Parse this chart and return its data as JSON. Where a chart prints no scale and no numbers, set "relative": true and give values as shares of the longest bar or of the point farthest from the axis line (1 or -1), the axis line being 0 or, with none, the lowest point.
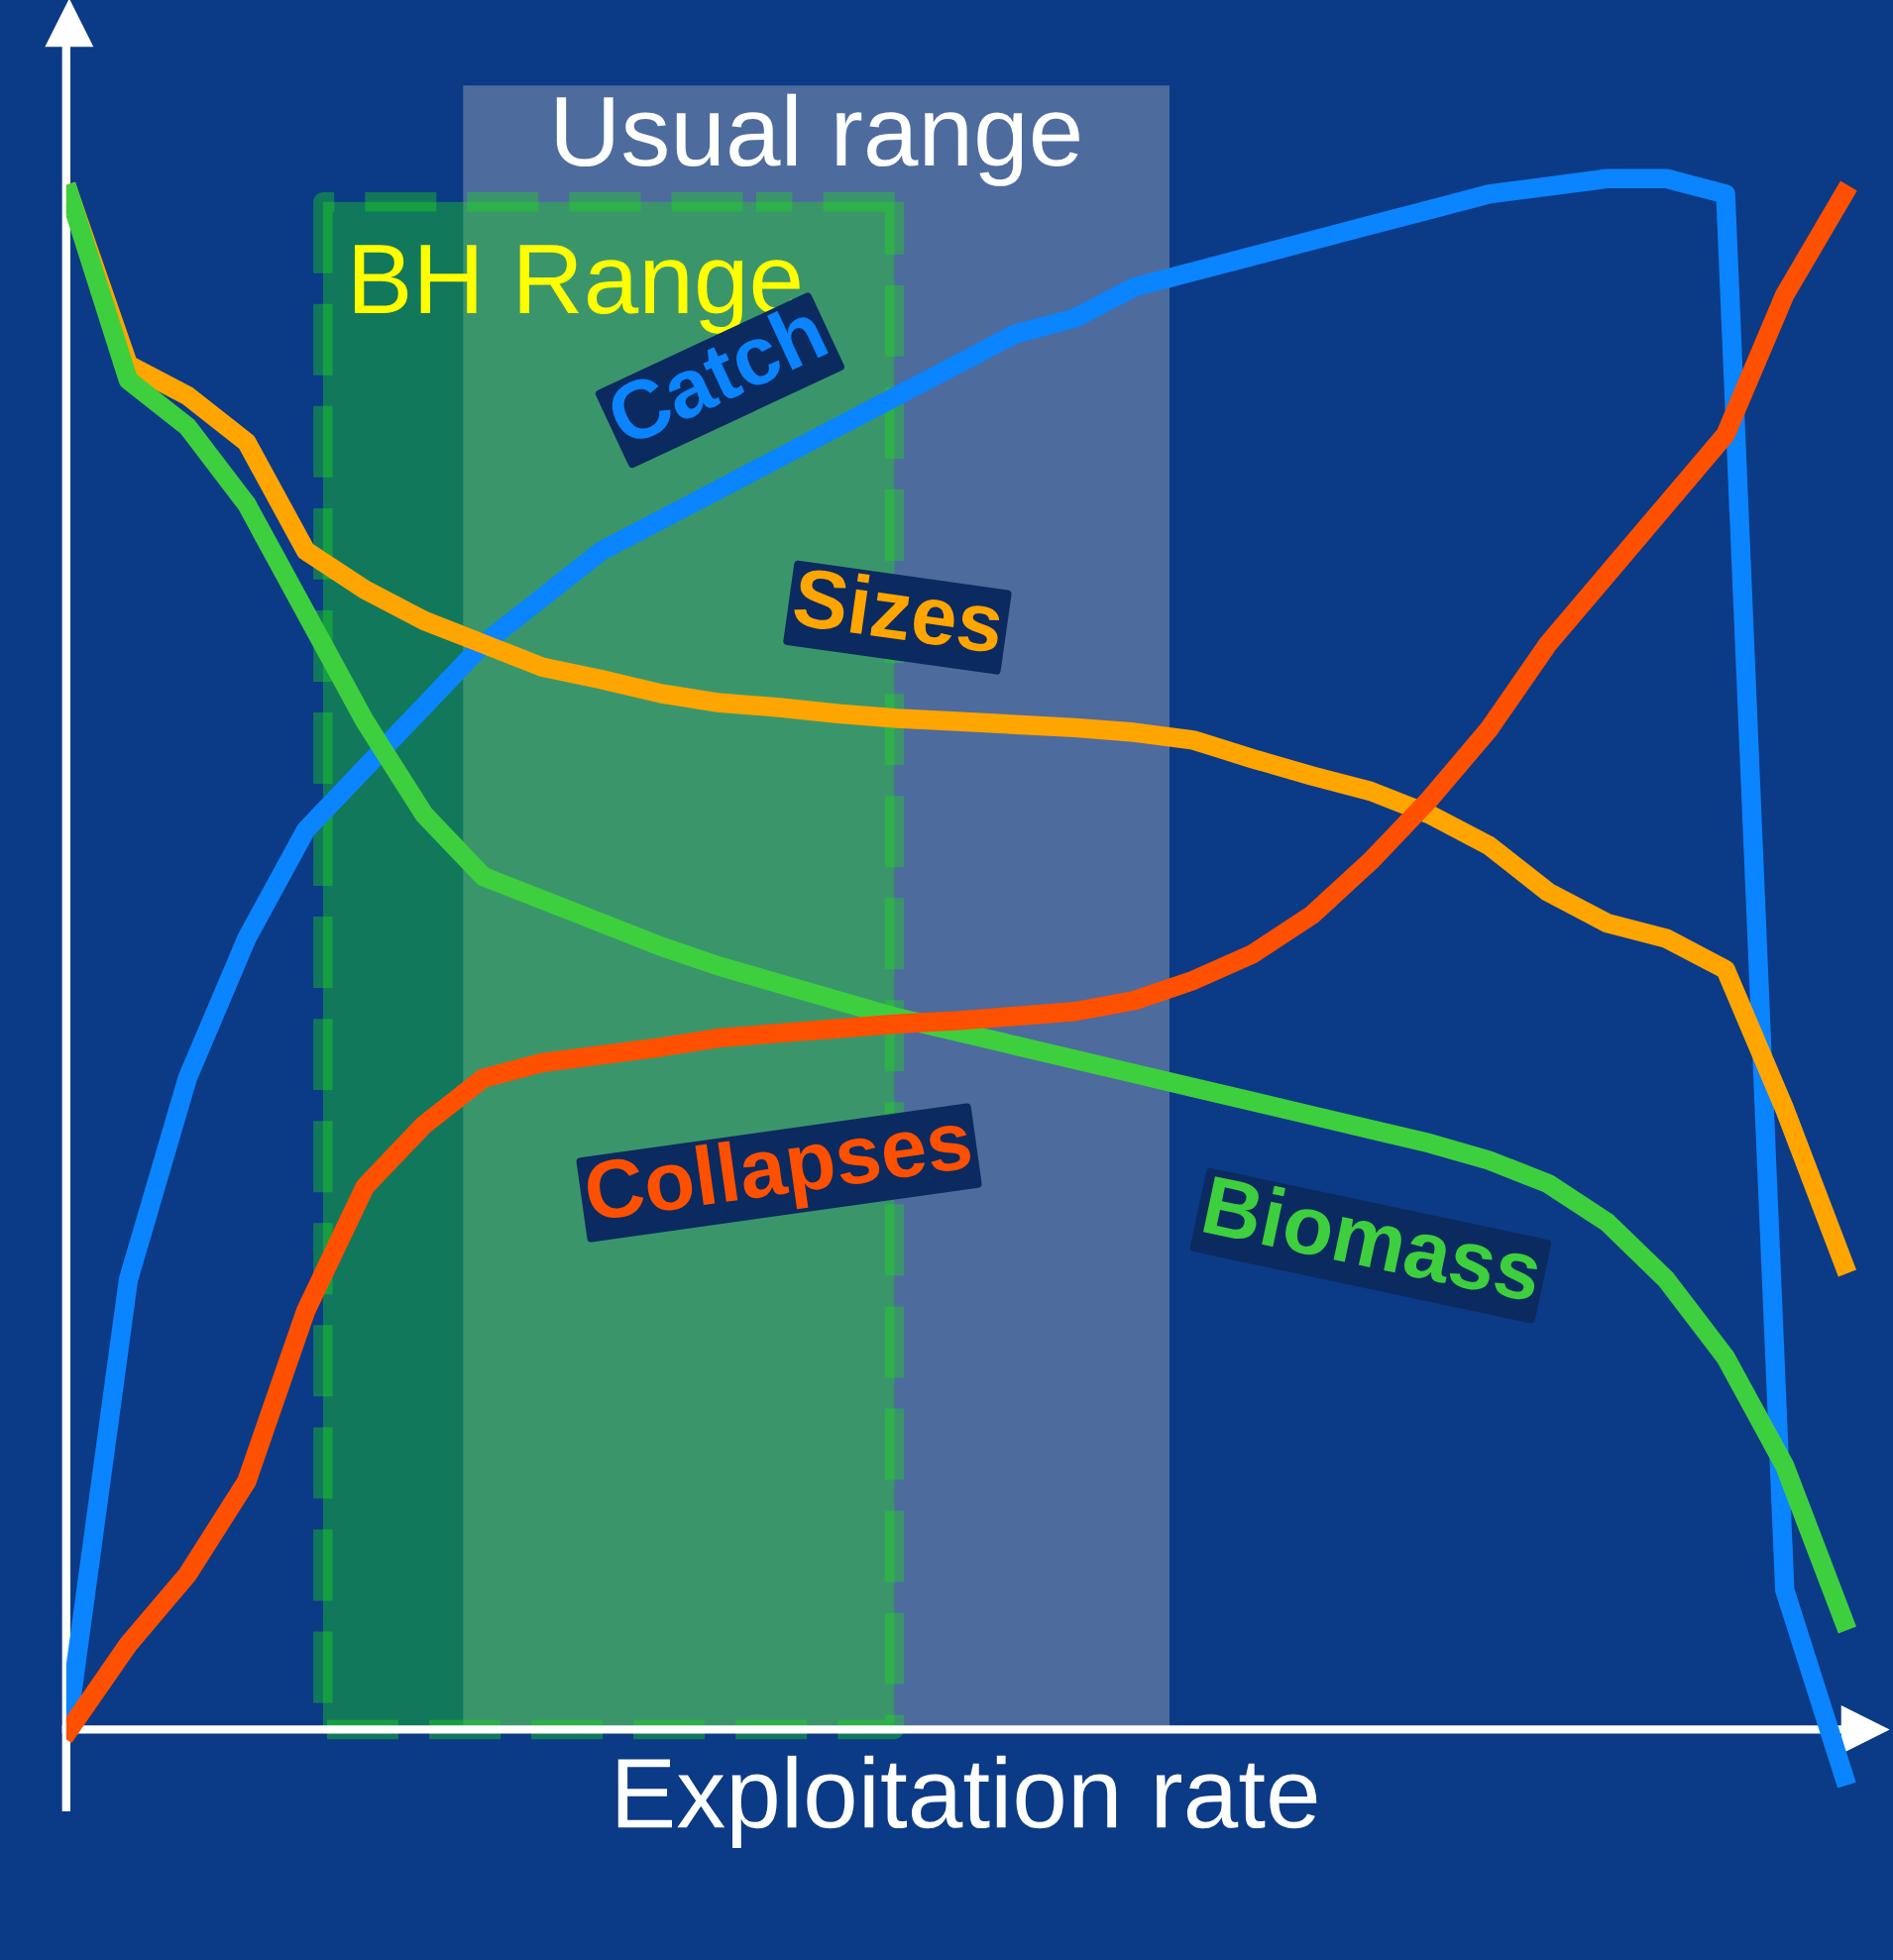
{
  "chart_data": {
    "type": "line",
    "relative": true,
    "xlabel": "Exploitation rate",
    "legend": false,
    "marker": "none",
    "line_style": "solid",
    "categories": [
      null,
      null,
      null,
      null,
      null,
      null,
      null,
      null,
      null,
      null,
      null,
      null,
      null,
      null,
      null,
      null,
      null,
      null,
      null,
      null,
      null,
      null,
      null,
      null,
      null,
      null,
      null,
      null,
      null,
      null,
      null
    ],
    "series": [
      {
        "name": "Catch",
        "color": "#0a84ff",
        "values": [
          0.01,
          0.29,
          0.42,
          0.51,
          0.58,
          0.62,
          0.66,
          0.7,
          0.73,
          0.76,
          0.78,
          0.8,
          0.82,
          0.84,
          0.86,
          0.88,
          0.9,
          0.91,
          0.93,
          0.94,
          0.95,
          0.96,
          0.97,
          0.98,
          0.99,
          0.995,
          1.0,
          1.0,
          0.99,
          0.09,
          -0.03
        ]
      },
      {
        "name": "Sizes",
        "color": "#ffa500",
        "values": [
          0.99,
          0.88,
          0.86,
          0.83,
          0.76,
          0.735,
          0.715,
          0.7,
          0.685,
          0.677,
          0.668,
          0.662,
          0.659,
          0.655,
          0.652,
          0.65,
          0.648,
          0.646,
          0.643,
          0.638,
          0.626,
          0.615,
          0.605,
          0.59,
          0.57,
          0.54,
          0.52,
          0.51,
          0.49,
          0.4,
          0.3
        ]
      },
      {
        "name": "Biomass",
        "color": "#3ecf3e",
        "values": [
          0.99,
          0.87,
          0.84,
          0.79,
          0.72,
          0.65,
          0.59,
          0.55,
          0.535,
          0.52,
          0.505,
          0.492,
          0.481,
          0.47,
          0.459,
          0.45,
          0.441,
          0.432,
          0.423,
          0.414,
          0.405,
          0.396,
          0.387,
          0.378,
          0.367,
          0.352,
          0.327,
          0.29,
          0.24,
          0.17,
          0.07
        ]
      },
      {
        "name": "Collapses",
        "color": "#ff5000",
        "values": [
          0.0,
          0.055,
          0.1,
          0.16,
          0.27,
          0.35,
          0.39,
          0.42,
          0.43,
          0.435,
          0.44,
          0.446,
          0.449,
          0.452,
          0.455,
          0.457,
          0.46,
          0.463,
          0.47,
          0.483,
          0.5,
          0.525,
          0.56,
          0.6,
          0.645,
          0.7,
          0.745,
          0.79,
          0.835,
          0.925,
          0.99
        ]
      }
    ],
    "annotations": [
      "Usual range",
      "BH Range"
    ]
  }
}
